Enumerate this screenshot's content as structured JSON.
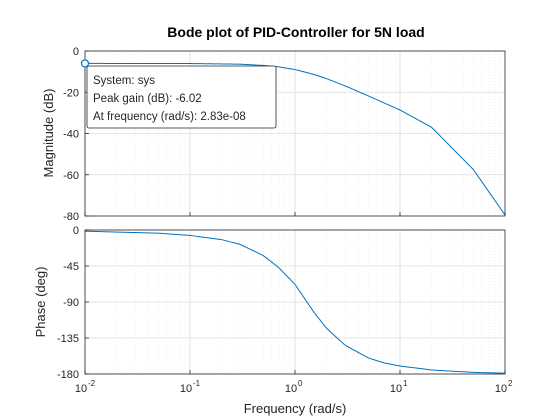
{
  "chart_data": {
    "type": "line",
    "title": "Bode plot of PID-Controller for 5N load",
    "xlabel": "Frequency  (rad/s)",
    "xscale": "log",
    "xlim": [
      0.01,
      100
    ],
    "x_ticks": [
      {
        "base": "10",
        "exp": "-2",
        "value": 0.01
      },
      {
        "base": "10",
        "exp": "-1",
        "value": 0.1
      },
      {
        "base": "10",
        "exp": "0",
        "value": 1
      },
      {
        "base": "10",
        "exp": "1",
        "value": 10
      },
      {
        "base": "10",
        "exp": "2",
        "value": 100
      }
    ],
    "grid": true,
    "series_color": "#0072BD",
    "panels": [
      {
        "ylabel": "Magnitude (dB)",
        "ylim": [
          -80,
          0
        ],
        "yticks": [
          "0",
          "-20",
          "-40",
          "-60",
          "-80"
        ],
        "ytick_values": [
          0,
          -20,
          -40,
          -60,
          -80
        ],
        "x": [
          0.01,
          0.1,
          0.3,
          0.5,
          0.7,
          1,
          1.5,
          2,
          3,
          5,
          10,
          20,
          50,
          100
        ],
        "y": [
          -6.02,
          -6.07,
          -6.4,
          -7.0,
          -7.7,
          -9.0,
          -11.3,
          -13.4,
          -16.9,
          -21.8,
          -28.6,
          -37.0,
          -57.5,
          -79.5
        ]
      },
      {
        "ylabel": "Phase (deg)",
        "ylim": [
          -180,
          0
        ],
        "yticks": [
          "0",
          "-45",
          "-90",
          "-135",
          "-180"
        ],
        "ytick_values": [
          0,
          -45,
          -90,
          -135,
          -180
        ],
        "x": [
          0.01,
          0.05,
          0.1,
          0.2,
          0.3,
          0.5,
          0.7,
          1,
          1.5,
          2,
          3,
          5,
          7,
          10,
          20,
          50,
          100
        ],
        "y": [
          -1.5,
          -4,
          -6.8,
          -12,
          -18,
          -32,
          -47,
          -68,
          -102,
          -123,
          -144,
          -160,
          -166,
          -170,
          -175,
          -178,
          -179
        ]
      }
    ],
    "datatip": {
      "lines": [
        "System: sys",
        "Peak gain (dB): -6.02",
        "At frequency (rad/s): 2.83e-08"
      ],
      "marker_x": 0.01,
      "marker_y": -6.02
    }
  }
}
